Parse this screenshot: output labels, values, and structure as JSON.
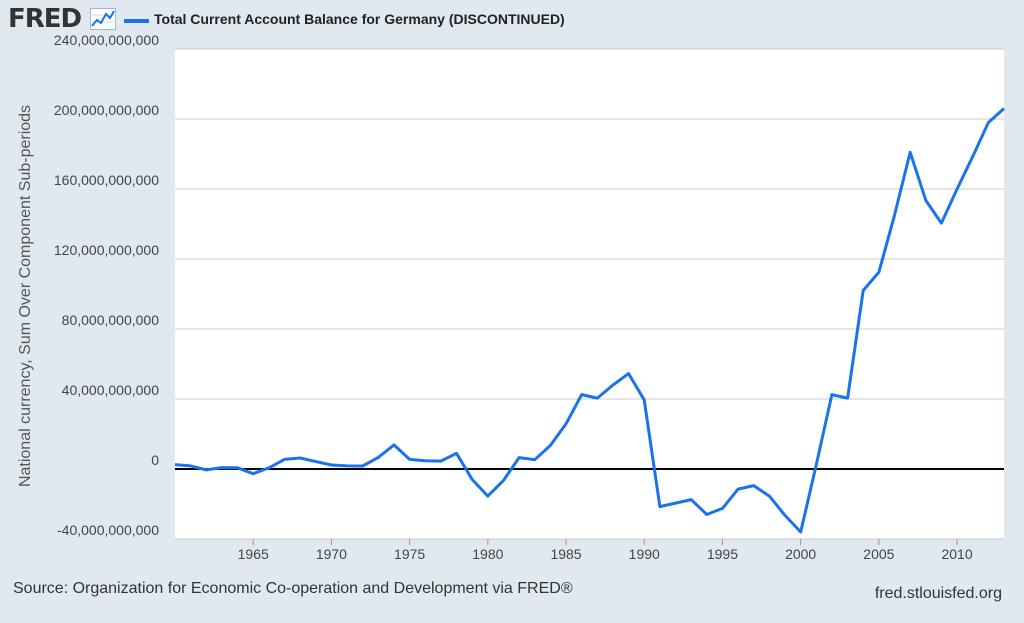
{
  "header": {
    "logo_text": "FRED",
    "logo_icon": "line-graph-icon",
    "legend_label": "Total Current Account Balance for Germany (DISCONTINUED)",
    "series_color": "#1a73e8"
  },
  "footer": {
    "source": "Source: Organization for Economic Co-operation and Development via FRED®",
    "site": "fred.stlouisfed.org"
  },
  "chart_data": {
    "type": "line",
    "title": "Total Current Account Balance for Germany (DISCONTINUED)",
    "xlabel": "",
    "ylabel": "National currency, Sum Over Component Sub-periods",
    "xlim": [
      1960,
      2013
    ],
    "ylim": [
      -40000000000,
      240000000000
    ],
    "x_ticks": [
      1965,
      1970,
      1975,
      1980,
      1985,
      1990,
      1995,
      2000,
      2005,
      2010
    ],
    "y_ticks": [
      -40000000000,
      0,
      40000000000,
      80000000000,
      120000000000,
      160000000000,
      200000000000,
      240000000000
    ],
    "y_tick_labels": [
      "-40,000,000,000",
      "0",
      "40,000,000,000",
      "80,000,000,000",
      "120,000,000,000",
      "160,000,000,000",
      "200,000,000,000",
      "240,000,000,000"
    ],
    "x_tick_labels": [
      "1965",
      "1970",
      "1975",
      "1980",
      "1985",
      "1990",
      "1995",
      "2000",
      "2005",
      "2010"
    ],
    "zero_line": true,
    "grid": "horizontal",
    "series": [
      {
        "name": "Total Current Account Balance for Germany (DISCONTINUED)",
        "color": "#1a73e8",
        "x": [
          1960,
          1961,
          1962,
          1963,
          1964,
          1965,
          1966,
          1967,
          1968,
          1969,
          1970,
          1971,
          1972,
          1973,
          1974,
          1975,
          1976,
          1977,
          1978,
          1979,
          1980,
          1981,
          1982,
          1983,
          1984,
          1985,
          1986,
          1987,
          1988,
          1989,
          1990,
          1991,
          1992,
          1993,
          1994,
          1995,
          1996,
          1997,
          1998,
          1999,
          2000,
          2001,
          2002,
          2003,
          2004,
          2005,
          2006,
          2007,
          2008,
          2009,
          2010,
          2011,
          2012,
          2013
        ],
        "values": [
          2500000000,
          1800000000,
          -500000000,
          800000000,
          700000000,
          -2700000000,
          600000000,
          5500000000,
          6300000000,
          4200000000,
          2300000000,
          1800000000,
          1700000000,
          6600000000,
          13800000000,
          5500000000,
          4700000000,
          4500000000,
          9000000000,
          -6000000000,
          -15500000000,
          -6500000000,
          6500000000,
          5300000000,
          13500000000,
          25800000000,
          42500000000,
          40500000000,
          48000000000,
          54500000000,
          39500000000,
          -21500000000,
          -19500000000,
          -17500000000,
          -26000000000,
          -22500000000,
          -11500000000,
          -9500000000,
          -15500000000,
          -26500000000,
          -36000000000,
          2500000000,
          42500000000,
          40500000000,
          102000000000,
          112500000000,
          145000000000,
          181000000000,
          153500000000,
          140500000000,
          160000000000,
          178500000000,
          198000000000,
          206000000000
        ]
      }
    ]
  }
}
